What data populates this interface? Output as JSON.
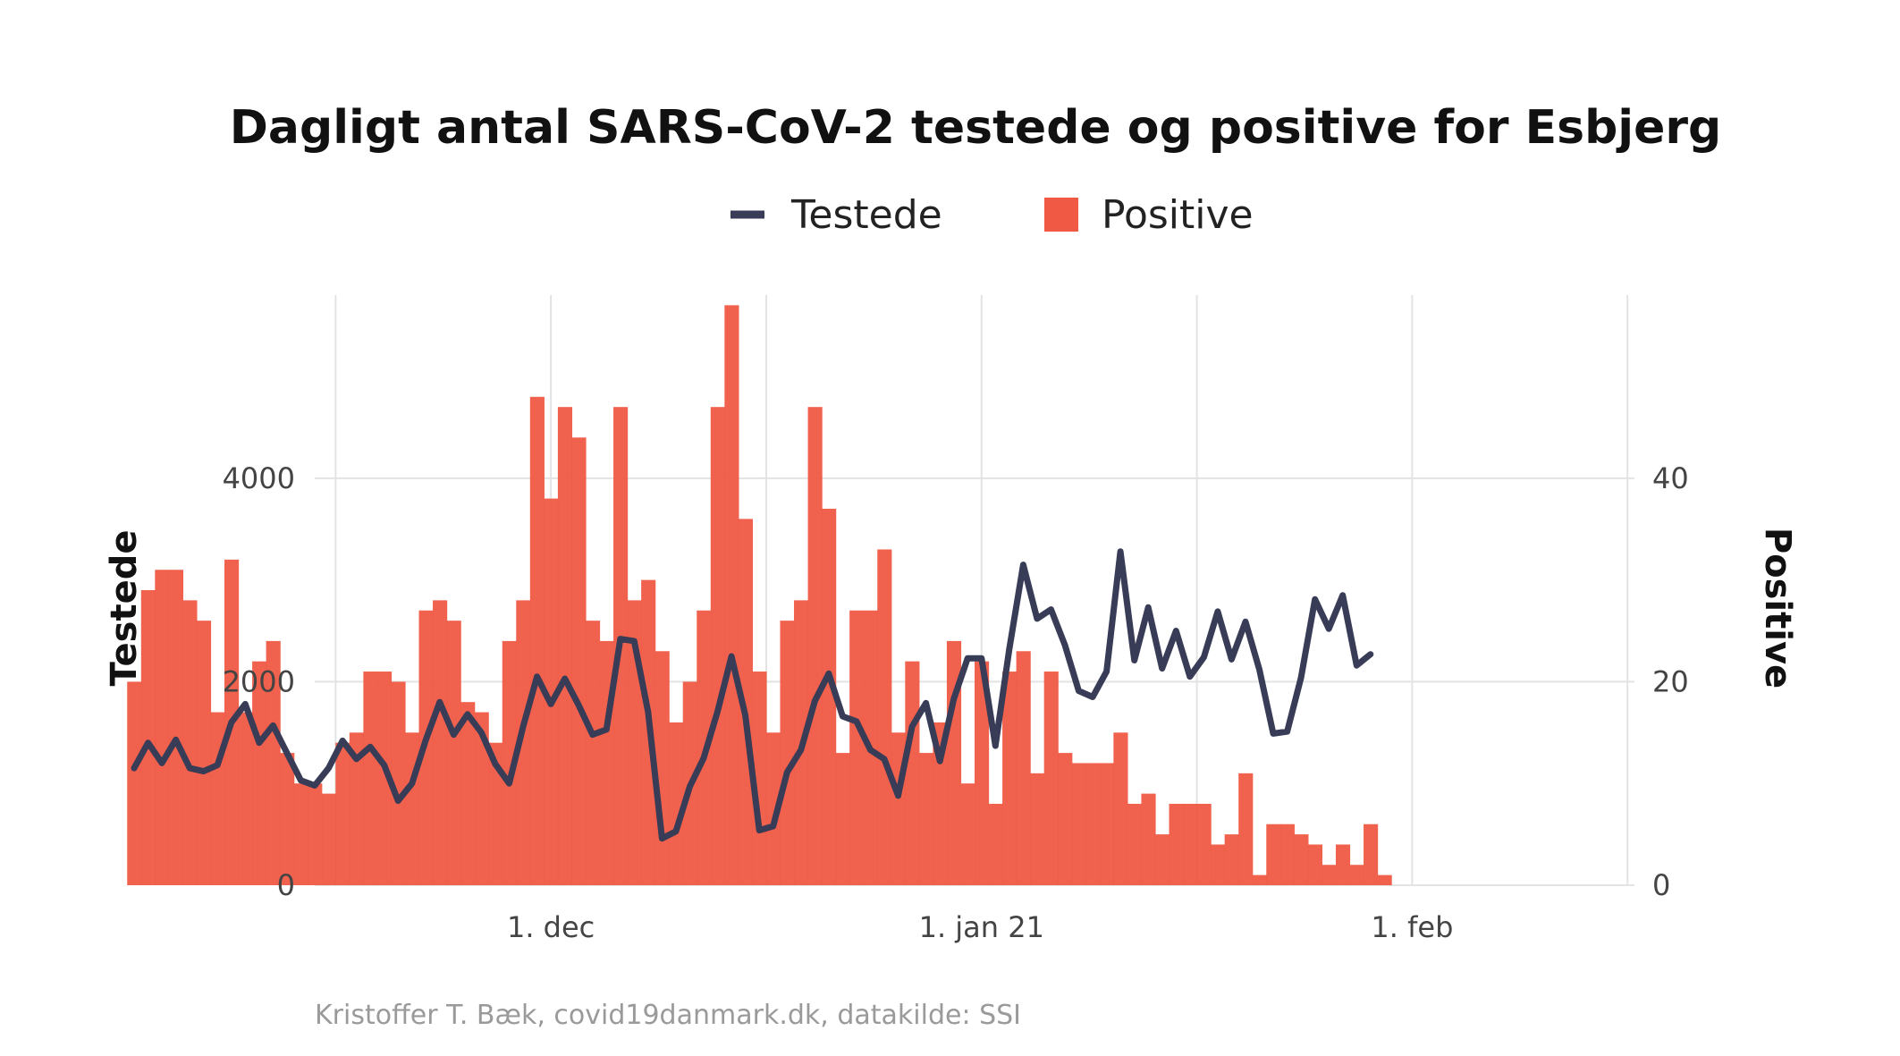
{
  "chart_data": {
    "type": "bar",
    "title": "Dagligt antal SARS-CoV-2 testede og positive for Esbjerg",
    "caption": "Kristoffer T. Bæk, covid19danmark.dk, datakilde: SSI",
    "legend_position": "top",
    "grid": true,
    "x_ticks": [
      {
        "date": "2020-12-01",
        "label": "1. dec"
      },
      {
        "date": "2021-01-01",
        "label": "1. jan 21"
      },
      {
        "date": "2021-02-01",
        "label": "1. feb"
      }
    ],
    "x_range": [
      "2020-11-14",
      "2021-02-17"
    ],
    "y_left": {
      "label": "Testede",
      "ticks": [
        0,
        2000,
        4000
      ],
      "range": [
        0,
        5800
      ]
    },
    "y_right": {
      "label": "Positive",
      "ticks": [
        0,
        20,
        40
      ],
      "range": [
        0,
        58
      ]
    },
    "series": [
      {
        "name": "Testede",
        "type": "line",
        "axis": "left",
        "color": "#383c56",
        "start_date": "2020-11-01",
        "values": [
          1150,
          1400,
          1200,
          1430,
          1150,
          1120,
          1180,
          1600,
          1780,
          1400,
          1570,
          1300,
          1030,
          980,
          1150,
          1420,
          1240,
          1360,
          1180,
          830,
          1000,
          1430,
          1800,
          1480,
          1680,
          1500,
          1190,
          1000,
          1560,
          2050,
          1780,
          2030,
          1770,
          1480,
          1530,
          2420,
          2400,
          1700,
          460,
          530,
          970,
          1250,
          1710,
          2250,
          1670,
          540,
          580,
          1110,
          1330,
          1810,
          2080,
          1660,
          1610,
          1330,
          1240,
          880,
          1560,
          1790,
          1220,
          1830,
          2230,
          2230,
          1370,
          2320,
          3150,
          2620,
          2710,
          2360,
          1910,
          1850,
          2100,
          3280,
          2210,
          2730,
          2130,
          2500,
          2050,
          2240,
          2690,
          2220,
          2590,
          2120,
          1490,
          1510,
          2040,
          2810,
          2520,
          2850,
          2160,
          2270
        ]
      },
      {
        "name": "Positive",
        "type": "bar",
        "axis": "right",
        "color": "#f05a44",
        "start_date": "2020-11-01",
        "values": [
          20,
          29,
          31,
          31,
          28,
          26,
          17,
          32,
          17,
          22,
          24,
          13,
          10,
          10,
          9,
          14,
          15,
          21,
          21,
          20,
          15,
          27,
          28,
          26,
          18,
          17,
          14,
          24,
          28,
          48,
          38,
          47,
          44,
          26,
          24,
          47,
          28,
          30,
          23,
          16,
          20,
          27,
          47,
          57,
          36,
          21,
          15,
          26,
          28,
          47,
          37,
          13,
          27,
          27,
          33,
          15,
          22,
          13,
          16,
          24,
          10,
          22,
          8,
          21,
          23,
          11,
          21,
          13,
          12,
          12,
          12,
          15,
          8,
          9,
          5,
          8,
          8,
          8,
          4,
          5,
          11,
          1,
          6,
          6,
          5,
          4,
          2,
          4,
          2,
          6,
          1
        ]
      }
    ]
  }
}
